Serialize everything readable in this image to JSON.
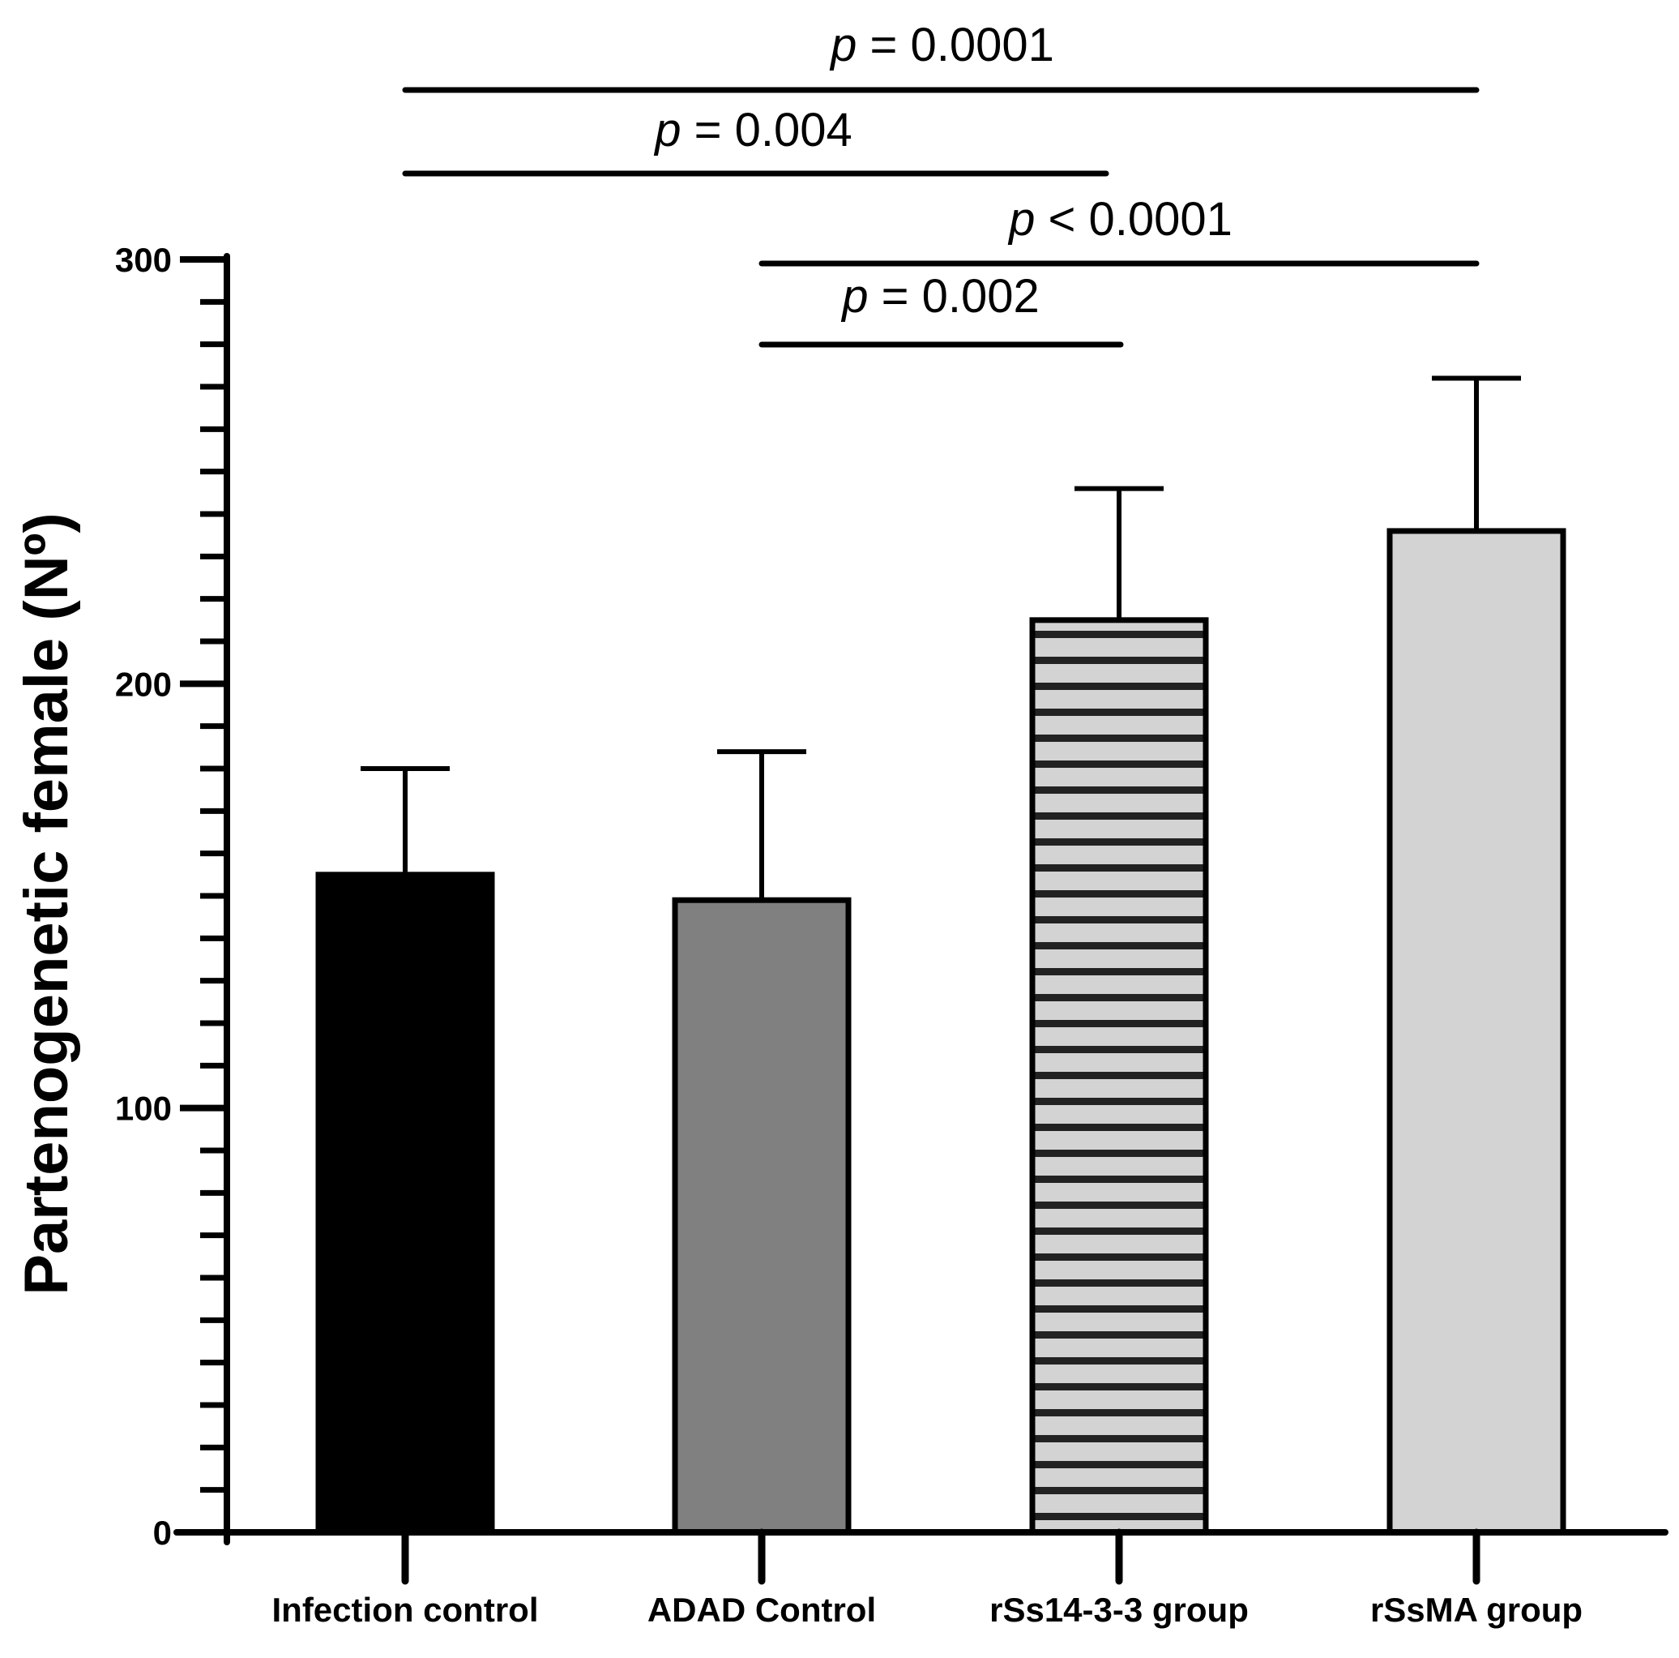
{
  "chart_data": {
    "type": "bar",
    "title": "",
    "xlabel": "",
    "ylabel": "Partenogenetic female (Nº)",
    "ylim": [
      0,
      300
    ],
    "yticks": [
      0,
      100,
      200,
      300
    ],
    "minor_tick_step": 10,
    "grid": false,
    "legend": "none",
    "categories": [
      "Infection control",
      "ADAD Control",
      "rSs14-3-3 group",
      "rSsMA group"
    ],
    "values": [
      155,
      149,
      215,
      236
    ],
    "errors": [
      25,
      35,
      31,
      36
    ],
    "colors": [
      "#000000",
      "#808080",
      "#d3d3d3",
      "#d3d3d3"
    ],
    "patterns": [
      "solid",
      "solid",
      "horizontal-stripes",
      "solid"
    ],
    "comparisons": [
      {
        "from": 0,
        "to": 3,
        "p_symbol": "p",
        "operator": "=",
        "value": "0.0001"
      },
      {
        "from": 0,
        "to": 2,
        "p_symbol": "p",
        "operator": "=",
        "value": "0.004"
      },
      {
        "from": 1,
        "to": 3,
        "p_symbol": "p",
        "operator": "<",
        "value": "0.0001"
      },
      {
        "from": 1,
        "to": 2,
        "p_symbol": "p",
        "operator": "=",
        "value": "0.002"
      }
    ]
  }
}
